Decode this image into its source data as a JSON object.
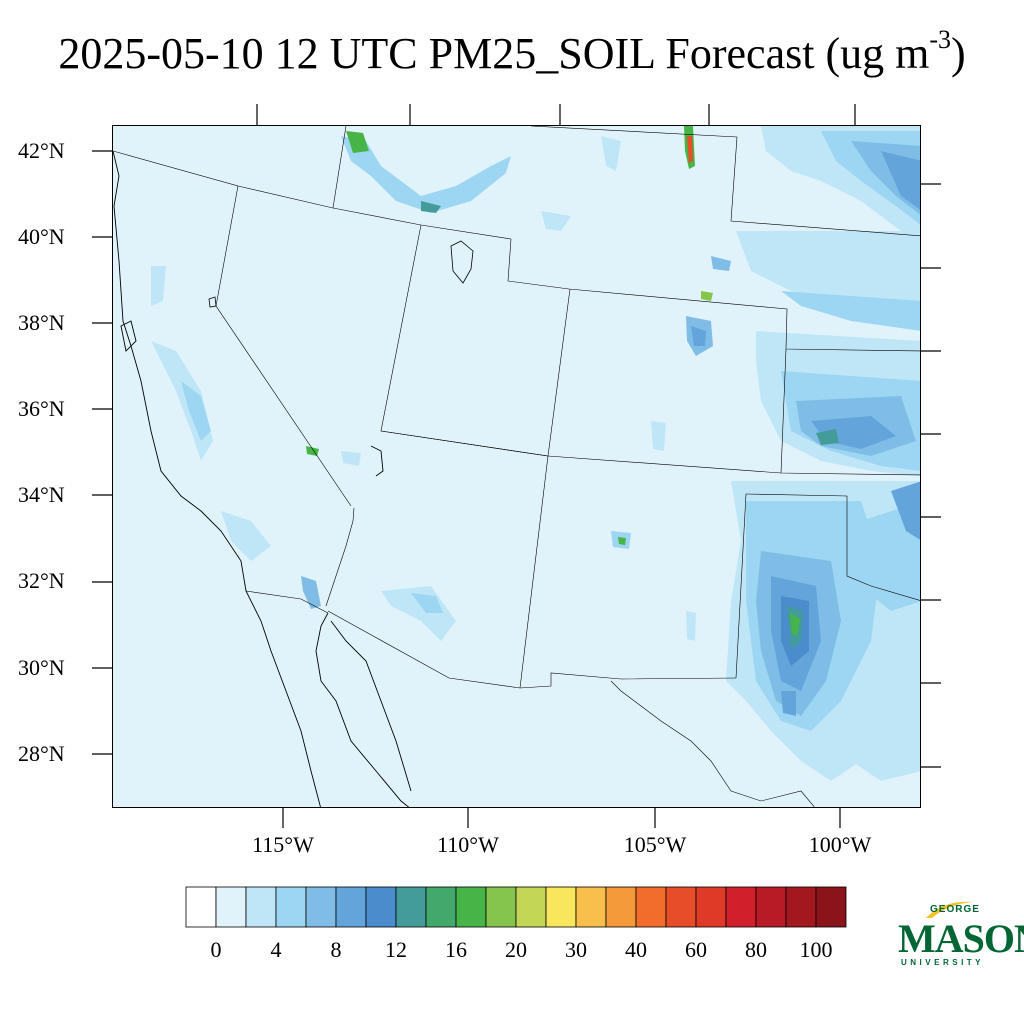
{
  "title": {
    "main": "2025-05-10 12 UTC PM25_SOIL Forecast (ug m",
    "exponent": "-3",
    "close": ")"
  },
  "axes": {
    "lat_labels": [
      "42°N",
      "40°N",
      "38°N",
      "36°N",
      "34°N",
      "32°N",
      "30°N",
      "28°N"
    ],
    "lon_labels": [
      "115°W",
      "110°W",
      "105°W",
      "100°W"
    ]
  },
  "colorbar": {
    "colors": [
      "#ffffff",
      "#e0f3fb",
      "#bfe6f7",
      "#9dd6f2",
      "#80bde6",
      "#63a5db",
      "#4a8ccc",
      "#449c9a",
      "#43a86c",
      "#46b446",
      "#85c54d",
      "#c4d656",
      "#f8e65c",
      "#f8bf4a",
      "#f59a3b",
      "#f26d2c",
      "#e84d2a",
      "#df3a28",
      "#d11f2c",
      "#b81b25",
      "#a3181f",
      "#8b141a"
    ],
    "labels": [
      "0",
      "4",
      "8",
      "12",
      "16",
      "20",
      "30",
      "40",
      "60",
      "80",
      "100"
    ]
  },
  "logo": {
    "line1": "GEORGE",
    "line2": "MASON",
    "line3": "UNIVERSITY",
    "color": "#006633",
    "accent": "#f2c12e"
  }
}
